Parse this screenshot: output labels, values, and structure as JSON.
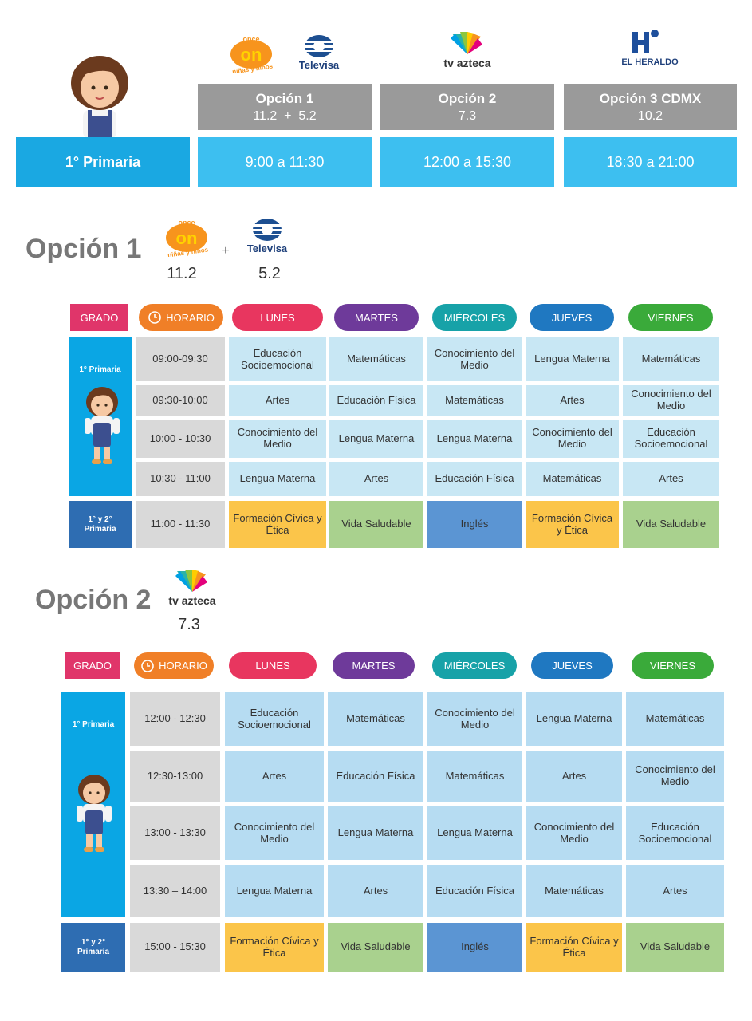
{
  "logos": {
    "once_top": "once",
    "once_mid": "on",
    "once_bottom": "niñas y niños",
    "televisa": "Televisa",
    "tvazteca": "tv azteca",
    "heraldo": "EL HERALDO"
  },
  "header": {
    "grade": "1° Primaria",
    "options": [
      {
        "name": "Opción 1",
        "channels": "11.2  +  5.2",
        "time": "9:00 a 11:30"
      },
      {
        "name": "Opción 2",
        "channels": "7.3",
        "time": "12:00 a 15:30"
      },
      {
        "name": "Opción 3 CDMX",
        "channels": "10.2",
        "time": "18:30 a 21:00"
      }
    ]
  },
  "sections": [
    {
      "title": "Opción 1",
      "plus": "+",
      "channels": [
        "11.2",
        "5.2"
      ],
      "headers": [
        "GRADO",
        "HORARIO",
        "LUNES",
        "MARTES",
        "MIÉRCOLES",
        "JUEVES",
        "VIERNES"
      ],
      "groups": [
        {
          "label": "1° Primaria",
          "rows": [
            {
              "time": "09:00-09:30",
              "cells": [
                "Educación Socioemocional",
                "Matemáticas",
                "Conocimiento del Medio",
                "Lengua Materna",
                "Matemáticas"
              ]
            },
            {
              "time": "09:30-10:00",
              "cells": [
                "Artes",
                "Educación Física",
                "Matemáticas",
                "Artes",
                "Conocimiento del Medio"
              ]
            },
            {
              "time": "10:00 - 10:30",
              "cells": [
                "Conocimiento del Medio",
                "Lengua Materna",
                "Lengua Materna",
                "Conocimiento del Medio",
                "Educación Socioemocional"
              ]
            },
            {
              "time": "10:30 - 11:00",
              "cells": [
                "Lengua Materna",
                "Artes",
                "Educación Física",
                "Matemáticas",
                "Artes"
              ]
            }
          ]
        },
        {
          "label": "1° y 2° Primaria",
          "rows": [
            {
              "time": "11:00 - 11:30",
              "cells": [
                "Formación Cívica y Ética",
                "Vida Saludable",
                "Inglés",
                "Formación Cívica y Ética",
                "Vida Saludable"
              ]
            }
          ]
        }
      ]
    },
    {
      "title": "Opción 2",
      "channels": [
        "7.3"
      ],
      "headers": [
        "GRADO",
        "HORARIO",
        "LUNES",
        "MARTES",
        "MIÉRCOLES",
        "JUEVES",
        "VIERNES"
      ],
      "groups": [
        {
          "label": "1° Primaria",
          "rows": [
            {
              "time": "12:00 - 12:30",
              "cells": [
                "Educación Socioemocional",
                "Matemáticas",
                "Conocimiento del Medio",
                "Lengua Materna",
                "Matemáticas"
              ]
            },
            {
              "time": "12:30-13:00",
              "cells": [
                "Artes",
                "Educación Física",
                "Matemáticas",
                "Artes",
                "Conocimiento del Medio"
              ]
            },
            {
              "time": "13:00 - 13:30",
              "cells": [
                "Conocimiento del Medio",
                "Lengua Materna",
                "Lengua Materna",
                "Conocimiento del Medio",
                "Educación Socioemocional"
              ]
            },
            {
              "time": "13:30 – 14:00",
              "cells": [
                "Lengua Materna",
                "Artes",
                "Educación Física",
                "Matemáticas",
                "Artes"
              ]
            }
          ]
        },
        {
          "label": "1° y 2° Primaria",
          "rows": [
            {
              "time": "15:00 - 15:30",
              "cells": [
                "Formación Cívica y Ética",
                "Vida Saludable",
                "Inglés",
                "Formación Cívica y Ética",
                "Vida Saludable"
              ]
            }
          ]
        }
      ]
    }
  ]
}
